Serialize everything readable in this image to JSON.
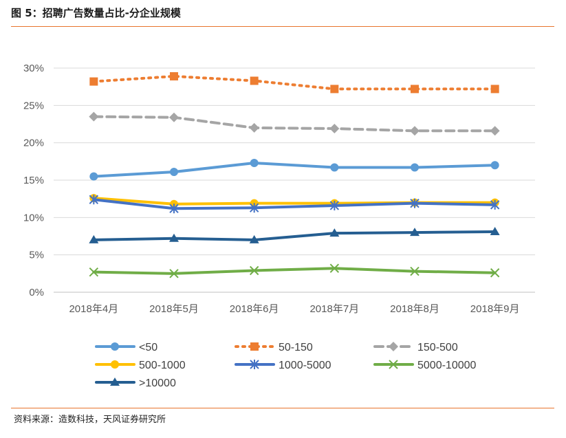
{
  "header": {
    "title": "图 5：招聘广告数量占比-分企业规模"
  },
  "footer": {
    "source": "资料来源：造数科技，天风证券研究所"
  },
  "chart_data": {
    "type": "line",
    "title": "招聘广告数量占比-分企业规模",
    "xlabel": "",
    "ylabel": "",
    "ylim": [
      0,
      30
    ],
    "y_ticks": [
      "0%",
      "5%",
      "10%",
      "15%",
      "20%",
      "25%",
      "30%"
    ],
    "grid": true,
    "legend_position": "bottom",
    "categories": [
      "2018年4月",
      "2018年5月",
      "2018年6月",
      "2018年7月",
      "2018年8月",
      "2018年9月"
    ],
    "series": [
      {
        "name": "<50",
        "values": [
          15.5,
          16.1,
          17.3,
          16.7,
          16.7,
          17.0
        ],
        "color": "#5B9BD5",
        "dash": "solid",
        "marker": "circle"
      },
      {
        "name": "50-150",
        "values": [
          28.2,
          28.9,
          28.3,
          27.2,
          27.2,
          27.2
        ],
        "color": "#ED7D31",
        "dash": "dot",
        "marker": "square"
      },
      {
        "name": "150-500",
        "values": [
          23.5,
          23.4,
          22.0,
          21.9,
          21.6,
          21.6
        ],
        "color": "#A5A5A5",
        "dash": "dash",
        "marker": "diamond"
      },
      {
        "name": "500-1000",
        "values": [
          12.6,
          11.8,
          11.9,
          11.9,
          12.0,
          12.0
        ],
        "color": "#FFC000",
        "dash": "solid",
        "marker": "circle"
      },
      {
        "name": "1000-5000",
        "values": [
          12.4,
          11.2,
          11.3,
          11.6,
          11.9,
          11.7
        ],
        "color": "#4472C4",
        "dash": "solid",
        "marker": "star"
      },
      {
        "name": "5000-10000",
        "values": [
          2.7,
          2.5,
          2.9,
          3.2,
          2.8,
          2.6
        ],
        "color": "#70AD47",
        "dash": "solid",
        "marker": "x"
      },
      {
        "name": ">10000",
        "values": [
          7.0,
          7.2,
          7.0,
          7.9,
          8.0,
          8.1
        ],
        "color": "#255E91",
        "dash": "solid",
        "marker": "triangle"
      }
    ]
  }
}
